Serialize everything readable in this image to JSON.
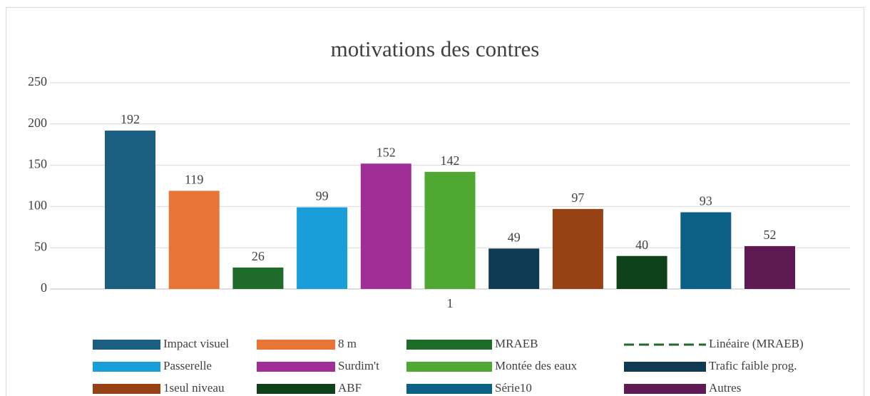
{
  "chart_data": {
    "type": "bar",
    "title": "motivations des contres",
    "categories": [
      "1"
    ],
    "series": [
      {
        "name": "Impact visuel",
        "color": "#1b5f80",
        "values": [
          192
        ]
      },
      {
        "name": "8 m",
        "color": "#e87436",
        "values": [
          119
        ]
      },
      {
        "name": "MRAEB",
        "color": "#1e6b2a",
        "values": [
          26
        ]
      },
      {
        "name": "Passerelle",
        "color": "#189fd9",
        "values": [
          99
        ]
      },
      {
        "name": "Surdim't",
        "color": "#9f2e97",
        "values": [
          152
        ]
      },
      {
        "name": "Montée des eaux",
        "color": "#4fa832",
        "values": [
          142
        ]
      },
      {
        "name": "Trafic faible prog.",
        "color": "#0e3a52",
        "values": [
          49
        ]
      },
      {
        "name": "1seul niveau",
        "color": "#974215",
        "values": [
          97
        ]
      },
      {
        "name": "ABF",
        "color": "#0f4218",
        "values": [
          40
        ]
      },
      {
        "name": "Série10",
        "color": "#0b6086",
        "values": [
          93
        ]
      },
      {
        "name": "Autres",
        "color": "#5f1a53",
        "values": [
          52
        ]
      }
    ],
    "trendlines": [
      {
        "name": "Linéaire (MRAEB)",
        "series": 2,
        "color": "#1e6b2a",
        "dashed": true
      }
    ],
    "ylim": [
      0,
      250
    ],
    "yticks": [
      0,
      50,
      100,
      150,
      200,
      250
    ],
    "grid": true,
    "legend": "bottom"
  }
}
